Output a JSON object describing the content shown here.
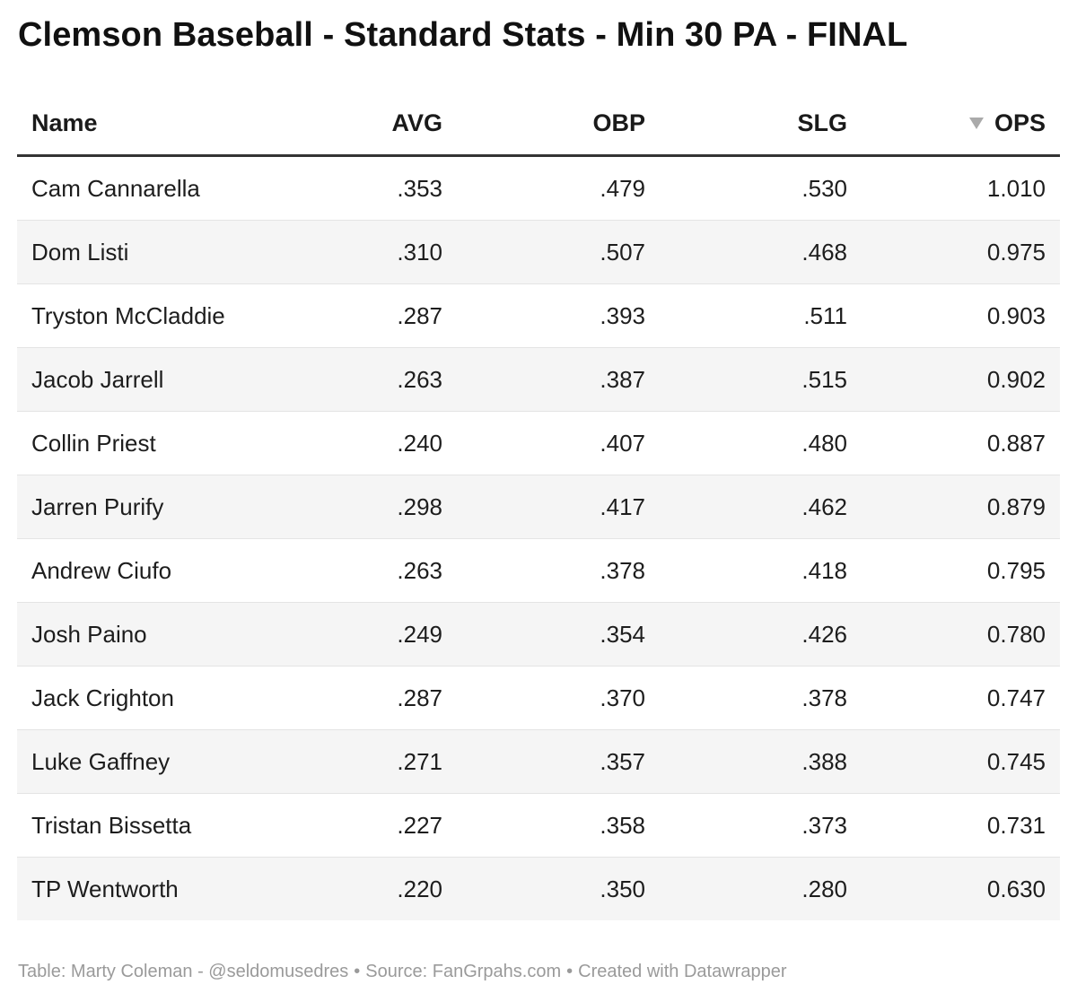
{
  "title": "Clemson Baseball - Standard Stats - Min 30 PA - FINAL",
  "chart_data": {
    "type": "table",
    "title": "Clemson Baseball - Standard Stats - Min 30 PA - FINAL",
    "columns": [
      "Name",
      "AVG",
      "OBP",
      "SLG",
      "OPS"
    ],
    "sorted_by": "OPS",
    "sort_direction": "descending",
    "rows": [
      {
        "name": "Cam Cannarella",
        "avg": ".353",
        "obp": ".479",
        "slg": ".530",
        "ops": "1.010"
      },
      {
        "name": "Dom Listi",
        "avg": ".310",
        "obp": ".507",
        "slg": ".468",
        "ops": "0.975"
      },
      {
        "name": "Tryston McCladdie",
        "avg": ".287",
        "obp": ".393",
        "slg": ".511",
        "ops": "0.903"
      },
      {
        "name": "Jacob Jarrell",
        "avg": ".263",
        "obp": ".387",
        "slg": ".515",
        "ops": "0.902"
      },
      {
        "name": "Collin Priest",
        "avg": ".240",
        "obp": ".407",
        "slg": ".480",
        "ops": "0.887"
      },
      {
        "name": "Jarren Purify",
        "avg": ".298",
        "obp": ".417",
        "slg": ".462",
        "ops": "0.879"
      },
      {
        "name": "Andrew Ciufo",
        "avg": ".263",
        "obp": ".378",
        "slg": ".418",
        "ops": "0.795"
      },
      {
        "name": "Josh Paino",
        "avg": ".249",
        "obp": ".354",
        "slg": ".426",
        "ops": "0.780"
      },
      {
        "name": "Jack Crighton",
        "avg": ".287",
        "obp": ".370",
        "slg": ".378",
        "ops": "0.747"
      },
      {
        "name": "Luke Gaffney",
        "avg": ".271",
        "obp": ".357",
        "slg": ".388",
        "ops": "0.745"
      },
      {
        "name": "Tristan Bissetta",
        "avg": ".227",
        "obp": ".358",
        "slg": ".373",
        "ops": "0.731"
      },
      {
        "name": "TP Wentworth",
        "avg": ".220",
        "obp": ".350",
        "slg": ".280",
        "ops": "0.630"
      }
    ]
  },
  "footer": {
    "table_credit": "Table: Marty Coleman - @seldomusedres",
    "source": "Source: FanGrpahs.com",
    "created_with": "Created with Datawrapper",
    "separator": "•"
  },
  "sort_icon": "sort-descending-icon"
}
